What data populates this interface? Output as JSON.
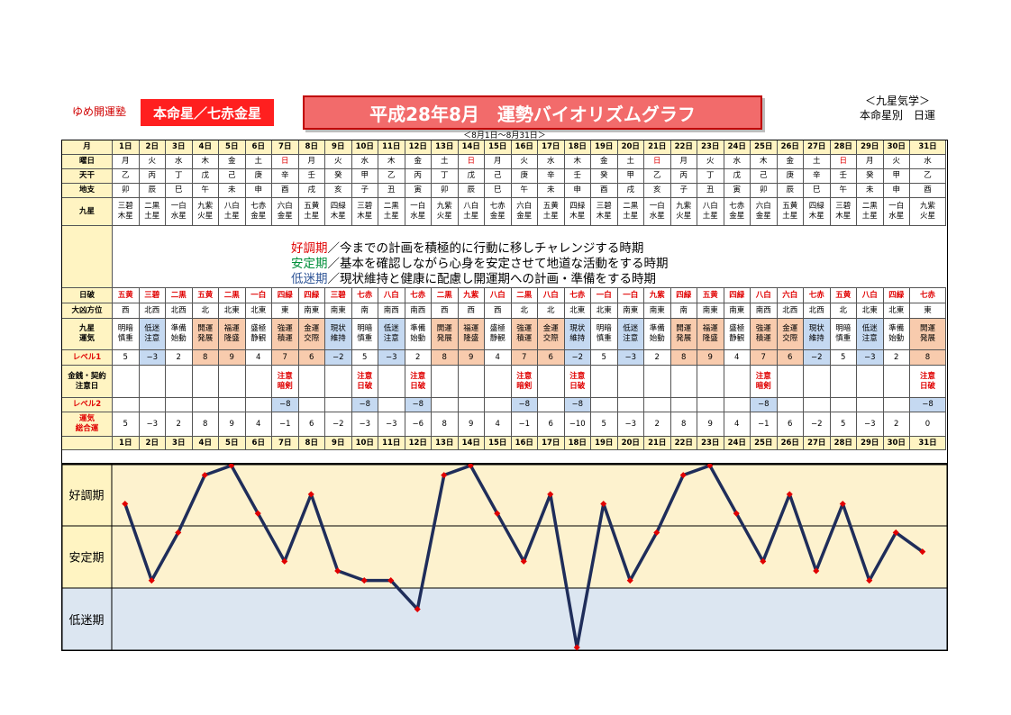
{
  "header": {
    "school": "ゆめ開運塾",
    "honmei": "本命星／七赤金星",
    "title": "平成28年8月　運勢バイオリズムグラフ",
    "range": "＜8月1日～8月31日＞",
    "kyusei_line1": "＜九星気学＞",
    "kyusei_line2": "本命星別　日運"
  },
  "row_labels": {
    "month": "月",
    "youbi": "曜日",
    "tenkan": "天干",
    "chishi": "地支",
    "kyusei": "九星",
    "nippa": "日破",
    "daikyo": "大凶方位",
    "unki": "九星\n運気",
    "level1": "レベル1",
    "kinsen": "金銭・契約\n注意日",
    "level2": "レベル2",
    "total": "運気\n総合運"
  },
  "legend": {
    "good_term": "好調期",
    "good_text": "／今までの計画を積極的に行動に移しチャレンジする時期",
    "stable_term": "安定期",
    "stable_text": "／基本を確認しながら心身を安定させて地道な活動をする時期",
    "low_term": "低迷期",
    "low_text": "／現状維持と健康に配慮し開運期への計画・準備をする時期"
  },
  "colors": {
    "label_bg": "#fff4c2",
    "good_cell": "#f8cbad",
    "low_cell": "#c5d9f1",
    "good_text": "#e00000",
    "stable_text": "#008f3a",
    "low_text": "#2f5597",
    "good_band": "#fdf2ce",
    "stable_band": "#fdf2ce",
    "low_band": "#dce6f1",
    "line": "#1f2d5a",
    "marker": "#e00000"
  },
  "days": [
    "1日",
    "2日",
    "3日",
    "4日",
    "5日",
    "6日",
    "7日",
    "8日",
    "9日",
    "10日",
    "11日",
    "12日",
    "13日",
    "14日",
    "15日",
    "16日",
    "17日",
    "18日",
    "19日",
    "20日",
    "21日",
    "22日",
    "23日",
    "24日",
    "25日",
    "26日",
    "27日",
    "28日",
    "29日",
    "30日",
    "31日"
  ],
  "youbi": [
    "月",
    "火",
    "水",
    "木",
    "金",
    "土",
    "日",
    "月",
    "火",
    "水",
    "木",
    "金",
    "土",
    "日",
    "月",
    "火",
    "水",
    "木",
    "金",
    "土",
    "日",
    "月",
    "火",
    "水",
    "木",
    "金",
    "土",
    "日",
    "月",
    "火",
    "水"
  ],
  "tenkan": [
    "乙",
    "丙",
    "丁",
    "戊",
    "己",
    "庚",
    "辛",
    "壬",
    "癸",
    "甲",
    "乙",
    "丙",
    "丁",
    "戊",
    "己",
    "庚",
    "辛",
    "壬",
    "癸",
    "甲",
    "乙",
    "丙",
    "丁",
    "戊",
    "己",
    "庚",
    "辛",
    "壬",
    "癸",
    "甲",
    "乙"
  ],
  "chishi": [
    "卯",
    "辰",
    "巳",
    "午",
    "未",
    "申",
    "酉",
    "戌",
    "亥",
    "子",
    "丑",
    "寅",
    "卯",
    "辰",
    "巳",
    "午",
    "未",
    "申",
    "酉",
    "戌",
    "亥",
    "子",
    "丑",
    "寅",
    "卯",
    "辰",
    "巳",
    "午",
    "未",
    "申",
    "酉"
  ],
  "kyusei": [
    "三碧\n木星",
    "二黒\n土星",
    "一白\n水星",
    "九紫\n火星",
    "八白\n土星",
    "七赤\n金星",
    "六白\n金星",
    "五黄\n土星",
    "四緑\n木星",
    "三碧\n木星",
    "二黒\n土星",
    "一白\n水星",
    "九紫\n火星",
    "八白\n土星",
    "七赤\n金星",
    "六白\n金星",
    "五黄\n土星",
    "四緑\n木星",
    "三碧\n木星",
    "二黒\n土星",
    "一白\n水星",
    "九紫\n火星",
    "八白\n土星",
    "七赤\n金星",
    "六白\n金星",
    "五黄\n土星",
    "四緑\n木星",
    "三碧\n木星",
    "二黒\n土星",
    "一白\n水星",
    "九紫\n火星"
  ],
  "nippa": [
    "五黄",
    "三碧",
    "二黒",
    "五黄",
    "二黒",
    "一白",
    "四緑",
    "四緑",
    "三碧",
    "七赤",
    "八白",
    "七赤",
    "二黒",
    "九紫",
    "八白",
    "二黒",
    "八白",
    "七赤",
    "一白",
    "一白",
    "九紫",
    "四緑",
    "五黄",
    "四緑",
    "八白",
    "六白",
    "七赤",
    "五黄",
    "八白",
    "四緑",
    "七赤"
  ],
  "daikyo": [
    "西",
    "北西",
    "北西",
    "北",
    "北東",
    "北東",
    "東",
    "南東",
    "南東",
    "南",
    "南西",
    "南西",
    "西",
    "西",
    "西",
    "北",
    "北",
    "北東",
    "北東",
    "南東",
    "南東",
    "南",
    "南東",
    "南東",
    "南西",
    "北西",
    "北西",
    "北",
    "北東",
    "北東",
    "東"
  ],
  "unki": [
    "明暗\n慎重",
    "低迷\n注意",
    "準備\n始動",
    "開運\n発展",
    "福運\n隆盛",
    "盛極\n静観",
    "強運\n積運",
    "金運\n交際",
    "現状\n維持",
    "明暗\n慎重",
    "低迷\n注意",
    "準備\n始動",
    "開運\n発展",
    "福運\n隆盛",
    "盛極\n静観",
    "強運\n積運",
    "金運\n交際",
    "現状\n維持",
    "明暗\n慎重",
    "低迷\n注意",
    "準備\n始動",
    "開運\n発展",
    "福運\n隆盛",
    "盛極\n静観",
    "強運\n積運",
    "金運\n交際",
    "現状\n維持",
    "明暗\n慎重",
    "低迷\n注意",
    "準備\n始動",
    "開運\n発展"
  ],
  "level1": [
    "5",
    "−3",
    "2",
    "8",
    "9",
    "4",
    "7",
    "6",
    "−2",
    "5",
    "−3",
    "2",
    "8",
    "9",
    "4",
    "7",
    "6",
    "−2",
    "5",
    "−3",
    "2",
    "8",
    "9",
    "4",
    "7",
    "6",
    "−2",
    "5",
    "−3",
    "2",
    "8"
  ],
  "kinsen": [
    "",
    "",
    "",
    "",
    "",
    "",
    "注意\n暗剣",
    "",
    "",
    "注意\n日破",
    "",
    "注意\n日破",
    "",
    "",
    "",
    "注意\n暗剣",
    "",
    "注意\n日破",
    "",
    "",
    "",
    "",
    "",
    "",
    "注意\n暗剣",
    "",
    "",
    "",
    "",
    "",
    "注意\n日破"
  ],
  "level2": [
    "",
    "",
    "",
    "",
    "",
    "",
    "−8",
    "",
    "",
    "−8",
    "",
    "−8",
    "",
    "",
    "",
    "−8",
    "",
    "−8",
    "",
    "",
    "",
    "",
    "",
    "",
    "−8",
    "",
    "",
    "",
    "",
    "",
    "−8"
  ],
  "total": [
    "5",
    "−3",
    "2",
    "8",
    "9",
    "4",
    "−1",
    "6",
    "−2",
    "−3",
    "−3",
    "−6",
    "8",
    "9",
    "4",
    "−1",
    "6",
    "−10",
    "5",
    "−3",
    "2",
    "8",
    "9",
    "4",
    "−1",
    "6",
    "−2",
    "5",
    "−3",
    "2",
    "0"
  ],
  "chart_data": {
    "type": "line",
    "title": "平成28年8月　運勢バイオリズムグラフ",
    "x": [
      "1日",
      "2日",
      "3日",
      "4日",
      "5日",
      "6日",
      "7日",
      "8日",
      "9日",
      "10日",
      "11日",
      "12日",
      "13日",
      "14日",
      "15日",
      "16日",
      "17日",
      "18日",
      "19日",
      "20日",
      "21日",
      "22日",
      "23日",
      "24日",
      "25日",
      "26日",
      "27日",
      "28日",
      "29日",
      "30日",
      "31日"
    ],
    "series": [
      {
        "name": "運気総合運",
        "values": [
          5,
          -3,
          2,
          8,
          9,
          4,
          -1,
          6,
          -2,
          -3,
          -3,
          -6,
          8,
          9,
          4,
          -1,
          6,
          -10,
          5,
          -3,
          2,
          8,
          9,
          4,
          -1,
          6,
          -2,
          5,
          -3,
          2,
          0
        ]
      }
    ],
    "bands": [
      "好調期",
      "安定期",
      "低迷期"
    ],
    "ylim": [
      -10,
      9
    ],
    "xlabel": "",
    "ylabel": "",
    "grid": false,
    "legend": "none"
  }
}
